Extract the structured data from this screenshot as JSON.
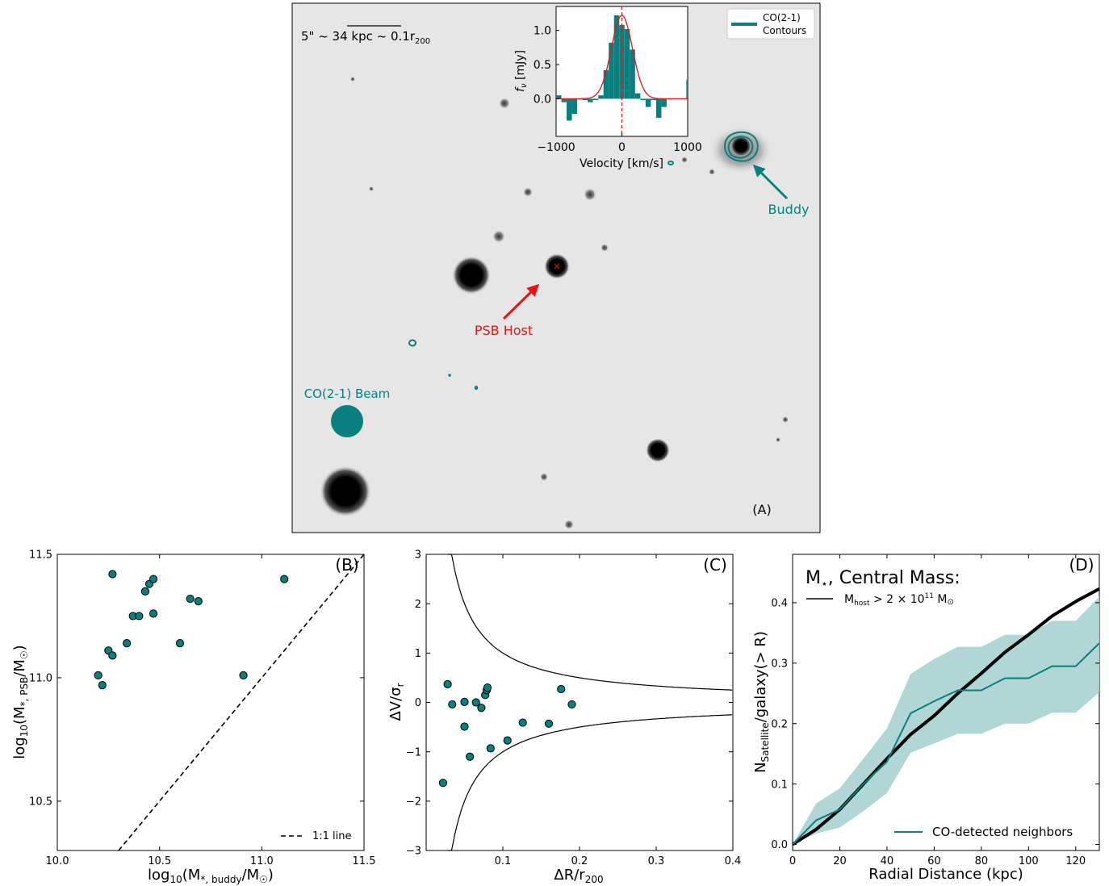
{
  "panel_a": {
    "panel_label": "(A)",
    "scale_bar_text": "5\" ~ 34 kpc  ~ 0.1r",
    "scale_bar_sub": "200",
    "legend_label_1": "CO(2-1)",
    "legend_label_2": "Contours",
    "buddy_label": "Buddy",
    "psb_label": "PSB Host",
    "beam_label": "CO(2-1) Beam",
    "teal": "#0a7f7f",
    "red": "#ee1111",
    "inset": {
      "type": "bar",
      "xlabel": "Velocity [km/s]",
      "ylabel": "f",
      "ylabel_sub": "ν",
      "ylabel_unit": " [mJy]",
      "xlim": [
        -1000,
        1000
      ],
      "ylim": [
        -0.55,
        1.35
      ],
      "xticks": [
        -1000,
        0,
        1000
      ],
      "xtick_labels": [
        "−1000",
        "0",
        "1000"
      ],
      "yticks": [
        0.0,
        0.5,
        1.0
      ],
      "ytick_labels": [
        "0.0",
        "0.5",
        "1.0"
      ],
      "bin_width": 80,
      "bin_starts": [
        -1000,
        -920,
        -840,
        -760,
        -680,
        -600,
        -520,
        -440,
        -360,
        -280,
        -200,
        -120,
        -40,
        40,
        120,
        200,
        280,
        360,
        440,
        520,
        600,
        680,
        760,
        840,
        920,
        980
      ],
      "bin_values": [
        0.05,
        -0.05,
        -0.32,
        -0.22,
        0.0,
        -0.02,
        -0.05,
        -0.02,
        0.05,
        0.42,
        0.82,
        1.22,
        1.08,
        1.02,
        0.72,
        0.08,
        -0.02,
        -0.12,
        -0.02,
        -0.28,
        -0.12,
        0.0,
        0.0,
        0.0,
        0.0,
        0.28
      ],
      "gauss_amp": 1.22,
      "gauss_center": 0,
      "gauss_sigma": 160
    }
  },
  "panel_b": {
    "type": "scatter",
    "panel_label": "(B)",
    "xlabel": "log",
    "xlabel_sub": "10",
    "xlabel_rest": "(M",
    "xlabel_sub2": "*, buddy",
    "xlabel_end": "/M",
    "xlabel_sun": "☉",
    "xlabel_close": ")",
    "ylabel": "log",
    "ylabel_sub": "10",
    "ylabel_rest": "(M",
    "ylabel_sub2": "*, PSB",
    "ylabel_end": "/M",
    "ylabel_sun": "☉",
    "ylabel_close": ")",
    "xlim": [
      10.0,
      11.5
    ],
    "ylim": [
      10.3,
      11.5
    ],
    "xticks": [
      10.0,
      10.5,
      11.0,
      11.5
    ],
    "xtick_labels": [
      "10.0",
      "10.5",
      "11.0",
      "11.5"
    ],
    "yticks": [
      10.5,
      11.0,
      11.5
    ],
    "ytick_labels": [
      "10.5",
      "11.0",
      "11.5"
    ],
    "legend": "1:1 line",
    "points": [
      [
        10.27,
        11.42
      ],
      [
        10.2,
        11.01
      ],
      [
        10.22,
        10.97
      ],
      [
        10.25,
        11.11
      ],
      [
        10.27,
        11.09
      ],
      [
        10.34,
        11.14
      ],
      [
        10.37,
        11.25
      ],
      [
        10.4,
        11.25
      ],
      [
        10.43,
        11.35
      ],
      [
        10.45,
        11.38
      ],
      [
        10.47,
        11.4
      ],
      [
        10.47,
        11.26
      ],
      [
        10.6,
        11.14
      ],
      [
        10.65,
        11.32
      ],
      [
        10.69,
        11.31
      ],
      [
        10.91,
        11.01
      ],
      [
        11.11,
        11.4
      ]
    ]
  },
  "panel_c": {
    "type": "scatter",
    "panel_label": "(C)",
    "xlabel": "ΔR/r",
    "xlabel_sub": "200",
    "ylabel": "ΔV/σ",
    "ylabel_sub": "r",
    "xlim": [
      0.0,
      0.4
    ],
    "ylim": [
      -3,
      3
    ],
    "xticks": [
      0.1,
      0.2,
      0.3,
      0.4
    ],
    "xtick_labels": [
      "0.1",
      "0.2",
      "0.3",
      "0.4"
    ],
    "yticks": [
      -3,
      -2,
      -1,
      0,
      1,
      2,
      3
    ],
    "ytick_labels": [
      "−3",
      "−2",
      "−1",
      "0",
      "1",
      "2",
      "3"
    ],
    "curve_k": 0.1,
    "points": [
      [
        0.022,
        -1.63
      ],
      [
        0.028,
        0.37
      ],
      [
        0.034,
        -0.04
      ],
      [
        0.05,
        -0.49
      ],
      [
        0.05,
        0.01
      ],
      [
        0.057,
        -1.1
      ],
      [
        0.065,
        0.0
      ],
      [
        0.072,
        -0.11
      ],
      [
        0.077,
        0.15
      ],
      [
        0.079,
        0.25
      ],
      [
        0.08,
        0.3
      ],
      [
        0.084,
        -0.93
      ],
      [
        0.106,
        -0.77
      ],
      [
        0.126,
        -0.41
      ],
      [
        0.16,
        -0.43
      ],
      [
        0.176,
        0.27
      ],
      [
        0.19,
        -0.04
      ]
    ]
  },
  "panel_d": {
    "type": "line",
    "panel_label": "(D)",
    "title": "M",
    "title_sub": "⋆",
    "title_rest": ", Central Mass:",
    "legend_host": "M",
    "legend_host_sub": "host",
    "legend_host_rest": " > 2 × 10",
    "legend_host_sup": "11",
    "legend_host_end": " M",
    "legend_host_sun": "⊙",
    "legend_co": "CO-detected neighbors",
    "xlabel": "Radial Distance (kpc)",
    "ylabel": "N",
    "ylabel_sub": "Satellite",
    "ylabel_rest": "/galaxy(> R)",
    "xlim": [
      0,
      130
    ],
    "ylim": [
      -0.01,
      0.48
    ],
    "xticks": [
      0,
      20,
      40,
      60,
      80,
      100,
      120
    ],
    "xtick_labels": [
      "0",
      "20",
      "40",
      "60",
      "80",
      "100",
      "120"
    ],
    "yticks": [
      0.0,
      0.1,
      0.2,
      0.3,
      0.4
    ],
    "ytick_labels": [
      "0.0",
      "0.1",
      "0.2",
      "0.3",
      "0.4"
    ],
    "black_x": [
      0,
      10,
      20,
      30,
      40,
      50,
      60,
      70,
      80,
      90,
      100,
      110,
      120,
      130
    ],
    "black_y": [
      0.0,
      0.025,
      0.058,
      0.1,
      0.142,
      0.182,
      0.213,
      0.25,
      0.283,
      0.318,
      0.347,
      0.378,
      0.402,
      0.423
    ],
    "co_x": [
      0,
      10,
      20,
      30,
      40,
      50,
      60,
      70,
      80,
      90,
      100,
      110,
      120,
      130
    ],
    "co_y": [
      0.0,
      0.04,
      0.058,
      0.1,
      0.137,
      0.217,
      0.237,
      0.255,
      0.255,
      0.275,
      0.275,
      0.295,
      0.295,
      0.333
    ],
    "co_hi": [
      0.0,
      0.068,
      0.093,
      0.142,
      0.192,
      0.282,
      0.307,
      0.327,
      0.327,
      0.347,
      0.347,
      0.37,
      0.37,
      0.41
    ],
    "co_lo": [
      0.0,
      0.018,
      0.028,
      0.055,
      0.085,
      0.152,
      0.167,
      0.183,
      0.183,
      0.2,
      0.2,
      0.218,
      0.218,
      0.252
    ],
    "teal_fill": "#a8d2d2"
  }
}
